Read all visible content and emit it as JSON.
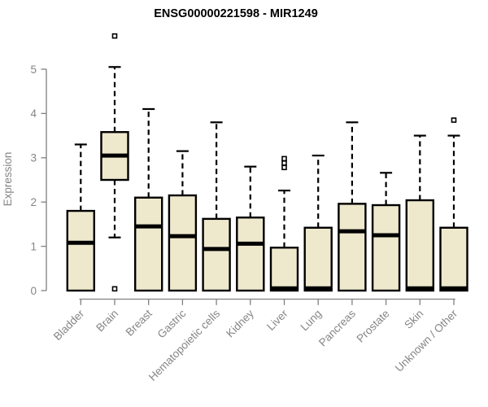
{
  "figure": {
    "background": "#ffffff"
  },
  "chart_data": {
    "type": "boxplot",
    "title": "ENSG00000221598 - MIR1249",
    "ylabel": "Expression",
    "xlabel": "",
    "ylim": [
      0,
      5
    ],
    "yticks": [
      0,
      1,
      2,
      3,
      4,
      5
    ],
    "grid": false,
    "legend": "none",
    "title_color": "#000000",
    "axis_color": "#808080",
    "label_color": "#858585",
    "box_fill": "#EEE8CD",
    "box_stroke": "#000000",
    "categories": [
      "Bladder",
      "Brain",
      "Breast",
      "Gastric",
      "Hematopoietic cells",
      "Kidney",
      "Liver",
      "Lung",
      "Pancreas",
      "Prostate",
      "Skin",
      "Unknown / Other"
    ],
    "series": [
      {
        "category": "Bladder",
        "whisker_low": 0,
        "q1": 0,
        "median": 1.08,
        "q3": 1.8,
        "whisker_high": 3.3,
        "outliers": []
      },
      {
        "category": "Brain",
        "whisker_low": 1.2,
        "q1": 2.5,
        "median": 3.05,
        "q3": 3.58,
        "whisker_high": 5.05,
        "outliers": [
          5.75,
          0.04
        ]
      },
      {
        "category": "Breast",
        "whisker_low": 0,
        "q1": 0,
        "median": 1.45,
        "q3": 2.1,
        "whisker_high": 4.1,
        "outliers": []
      },
      {
        "category": "Gastric",
        "whisker_low": 0,
        "q1": 0,
        "median": 1.23,
        "q3": 2.15,
        "whisker_high": 3.15,
        "outliers": []
      },
      {
        "category": "Hematopoietic cells",
        "whisker_low": 0,
        "q1": 0,
        "median": 0.94,
        "q3": 1.62,
        "whisker_high": 3.8,
        "outliers": []
      },
      {
        "category": "Kidney",
        "whisker_low": 0,
        "q1": 0,
        "median": 1.06,
        "q3": 1.65,
        "whisker_high": 2.8,
        "outliers": []
      },
      {
        "category": "Liver",
        "whisker_low": 0,
        "q1": 0,
        "median": 0.05,
        "q3": 0.97,
        "whisker_high": 2.26,
        "outliers": [
          2.78,
          2.88,
          2.98
        ]
      },
      {
        "category": "Lung",
        "whisker_low": 0,
        "q1": 0,
        "median": 0.05,
        "q3": 1.42,
        "whisker_high": 3.05,
        "outliers": []
      },
      {
        "category": "Pancreas",
        "whisker_low": 0,
        "q1": 0,
        "median": 1.34,
        "q3": 1.96,
        "whisker_high": 3.8,
        "outliers": []
      },
      {
        "category": "Prostate",
        "whisker_low": 0,
        "q1": 0,
        "median": 1.25,
        "q3": 1.93,
        "whisker_high": 2.66,
        "outliers": []
      },
      {
        "category": "Skin",
        "whisker_low": 0,
        "q1": 0,
        "median": 0.05,
        "q3": 2.04,
        "whisker_high": 3.5,
        "outliers": []
      },
      {
        "category": "Unknown / Other",
        "whisker_low": 0,
        "q1": 0,
        "median": 0.05,
        "q3": 1.42,
        "whisker_high": 3.5,
        "outliers": [
          3.85
        ]
      }
    ]
  }
}
